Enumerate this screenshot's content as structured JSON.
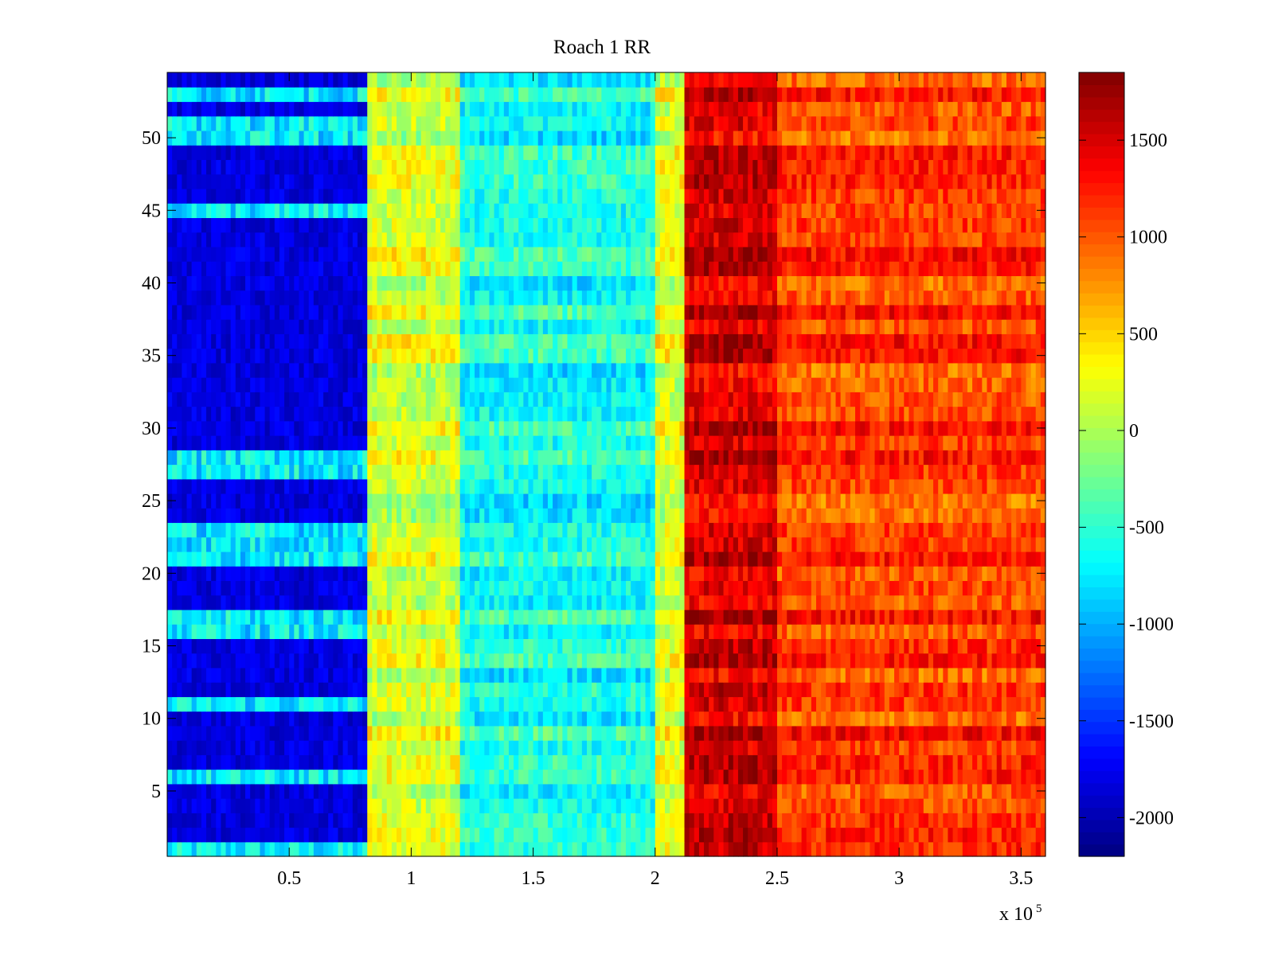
{
  "chart_data": {
    "type": "heatmap",
    "title": "Roach 1 RR",
    "xlabel": "",
    "ylabel": "",
    "x_multiplier_label": {
      "base": "x 10",
      "exponent": "5"
    },
    "xlim": [
      0,
      3.6
    ],
    "ylim": [
      0.5,
      54.5
    ],
    "x_unit_scale": 100000,
    "rows": 54,
    "colormap": "jet",
    "clim": [
      -2200,
      1850
    ],
    "x_ticks": [
      {
        "value": 0.5,
        "label": "0.5"
      },
      {
        "value": 1,
        "label": "1"
      },
      {
        "value": 1.5,
        "label": "1.5"
      },
      {
        "value": 2,
        "label": "2"
      },
      {
        "value": 2.5,
        "label": "2.5"
      },
      {
        "value": 3,
        "label": "3"
      },
      {
        "value": 3.5,
        "label": "3.5"
      }
    ],
    "y_ticks": [
      {
        "value": 5,
        "label": "5"
      },
      {
        "value": 10,
        "label": "10"
      },
      {
        "value": 15,
        "label": "15"
      },
      {
        "value": 20,
        "label": "20"
      },
      {
        "value": 25,
        "label": "25"
      },
      {
        "value": 30,
        "label": "30"
      },
      {
        "value": 35,
        "label": "35"
      },
      {
        "value": 40,
        "label": "40"
      },
      {
        "value": 45,
        "label": "45"
      },
      {
        "value": 50,
        "label": "50"
      }
    ],
    "colorbar_ticks": [
      {
        "value": 1500,
        "label": "1500"
      },
      {
        "value": 1000,
        "label": "1000"
      },
      {
        "value": 500,
        "label": "500"
      },
      {
        "value": 0,
        "label": "0"
      },
      {
        "value": -500,
        "label": "-500"
      },
      {
        "value": -1000,
        "label": "-1000"
      },
      {
        "value": -1500,
        "label": "-1500"
      },
      {
        "value": -2000,
        "label": "-2000"
      }
    ],
    "x_region_boundaries": [
      0.83,
      2.12
    ],
    "region_typical_values": [
      {
        "x_range": [
          0,
          0.83
        ],
        "value": -2000
      },
      {
        "x_range": [
          0.83,
          1.2
        ],
        "value": 150
      },
      {
        "x_range": [
          1.2,
          2.0
        ],
        "value": -600
      },
      {
        "x_range": [
          2.0,
          2.12
        ],
        "value": 200
      },
      {
        "x_range": [
          2.12,
          2.5
        ],
        "value": 1500
      },
      {
        "x_range": [
          2.5,
          3.6
        ],
        "value": 1100
      }
    ],
    "lighter_rows_in_first_region": [
      1,
      6,
      11,
      16,
      17,
      21,
      22,
      23,
      27,
      28,
      45,
      50,
      51,
      53
    ]
  }
}
